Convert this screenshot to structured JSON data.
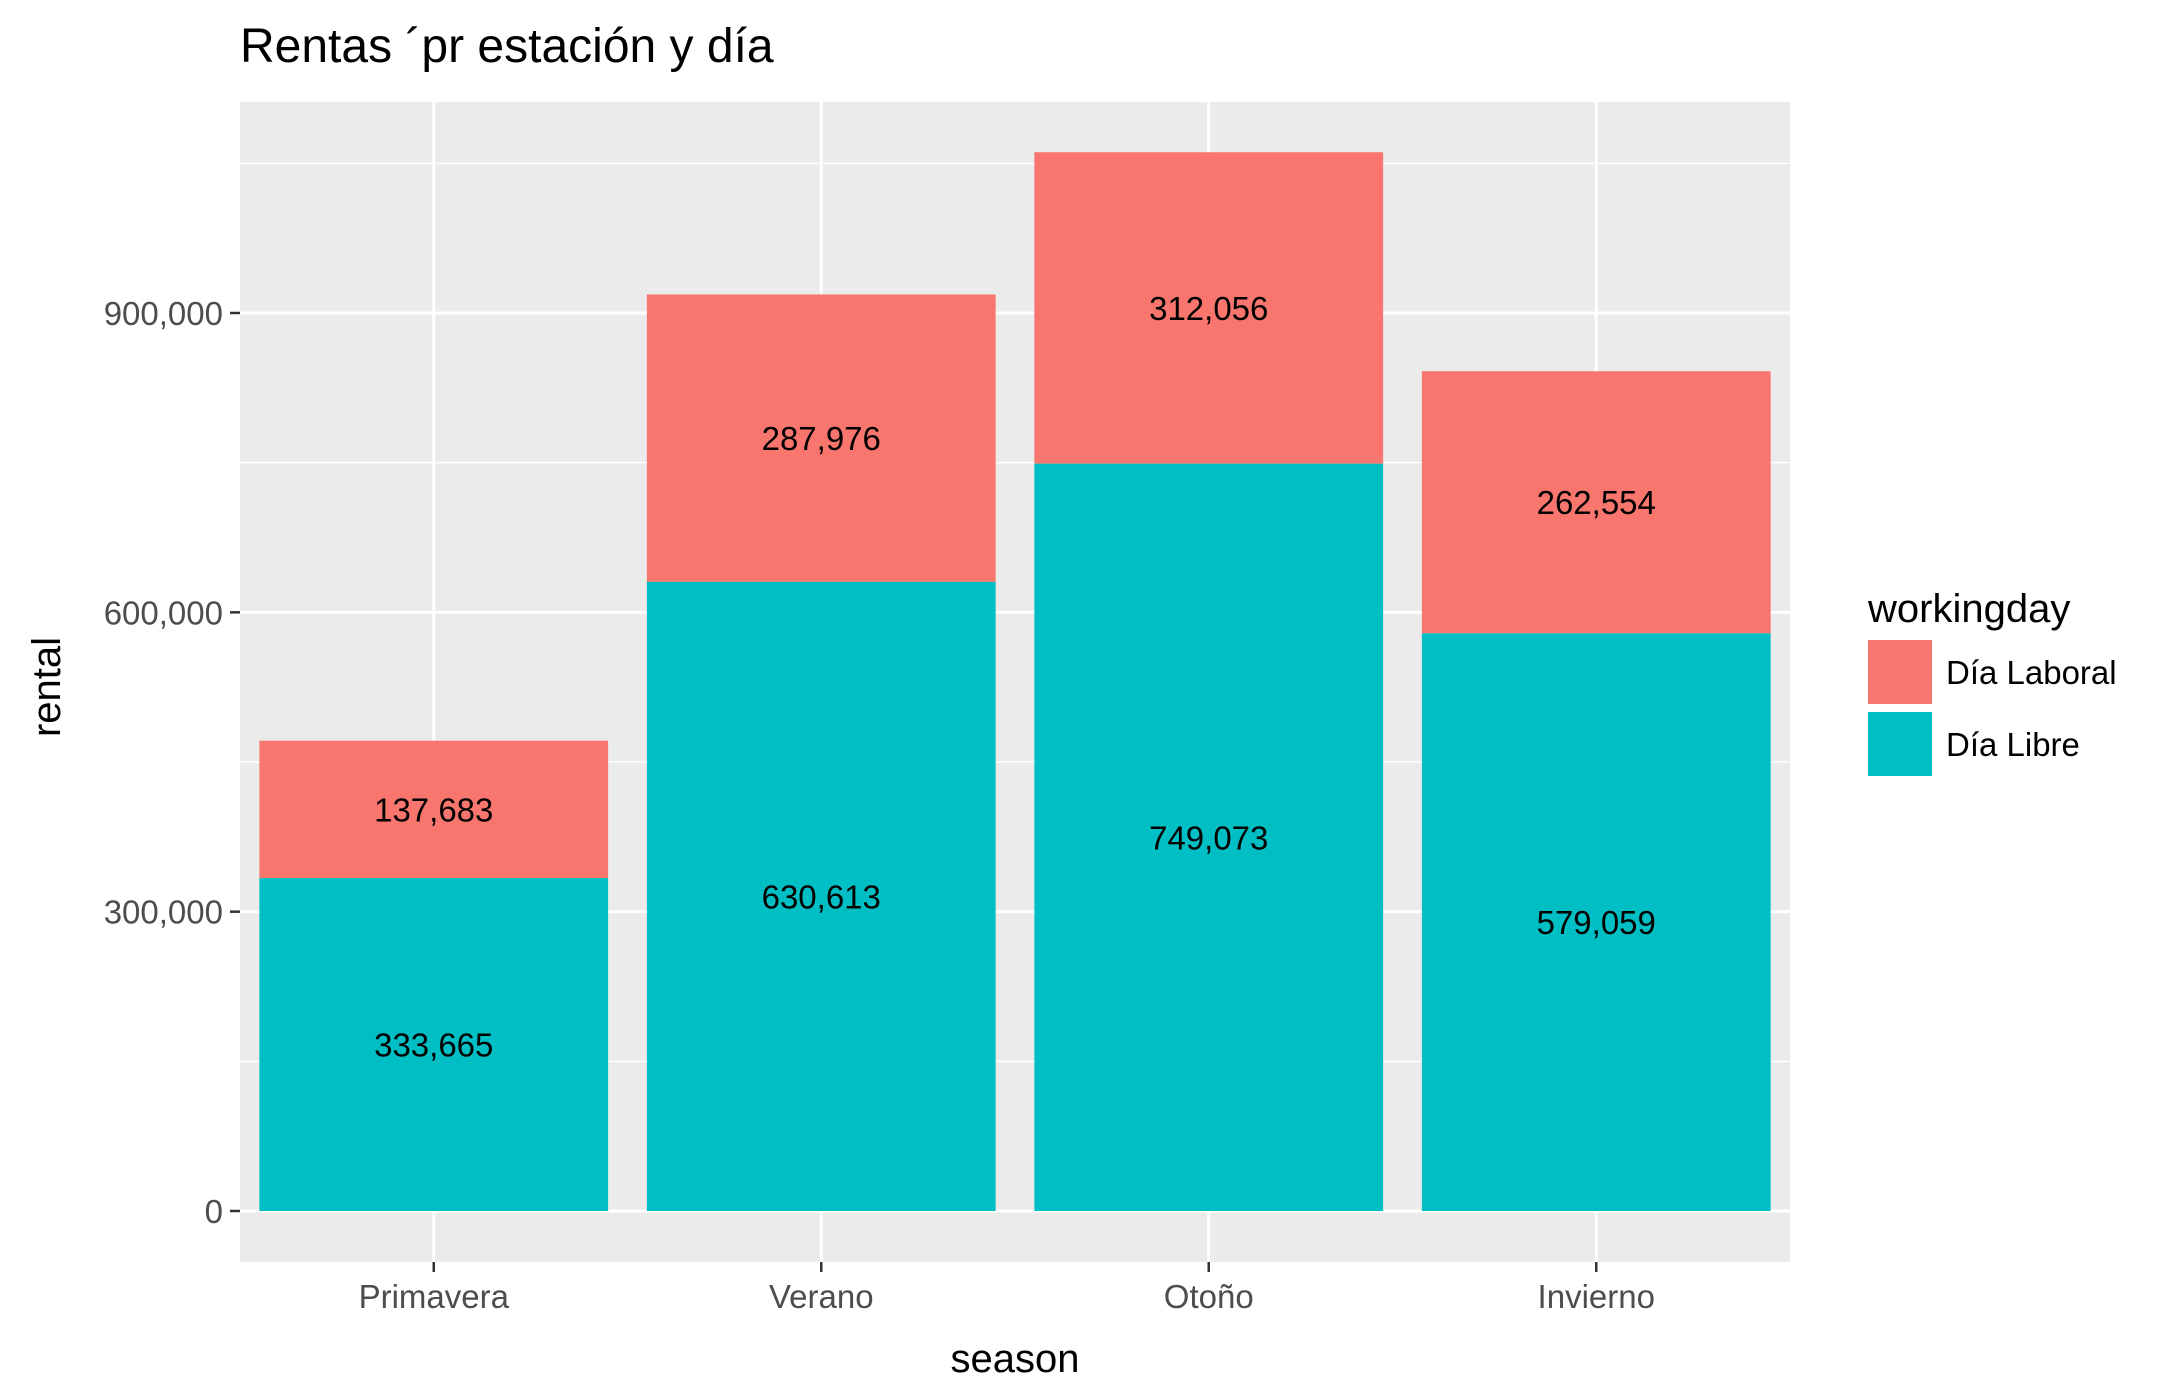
{
  "chart_data": {
    "type": "bar",
    "stacked": true,
    "title": "Rentas ´pr estación y día",
    "xlabel": "season",
    "ylabel": "rental",
    "categories": [
      "Primavera",
      "Verano",
      "Otoño",
      "Invierno"
    ],
    "series": [
      {
        "name": "Día Libre",
        "color": "#00BFC4",
        "values": [
          333665,
          630613,
          749073,
          579059
        ],
        "value_labels": [
          "333,665",
          "630,613",
          "749,073",
          "579,059"
        ]
      },
      {
        "name": "Día Laboral",
        "color": "#F8766D",
        "values": [
          137683,
          287976,
          312056,
          262554
        ],
        "value_labels": [
          "137,683",
          "287,976",
          "312,056",
          "262,554"
        ]
      }
    ],
    "ylim": [
      0,
      1111125
    ],
    "yticks": [
      0,
      300000,
      600000,
      900000
    ],
    "ytick_labels": [
      "0",
      "300,000",
      "600,000",
      "900,000"
    ],
    "legend": {
      "title": "workingday",
      "position": "right",
      "entries": [
        "Día Laboral",
        "Día Libre"
      ]
    },
    "grid": true,
    "panel_background": "#EBEBEB",
    "grid_color": "#FFFFFF"
  }
}
